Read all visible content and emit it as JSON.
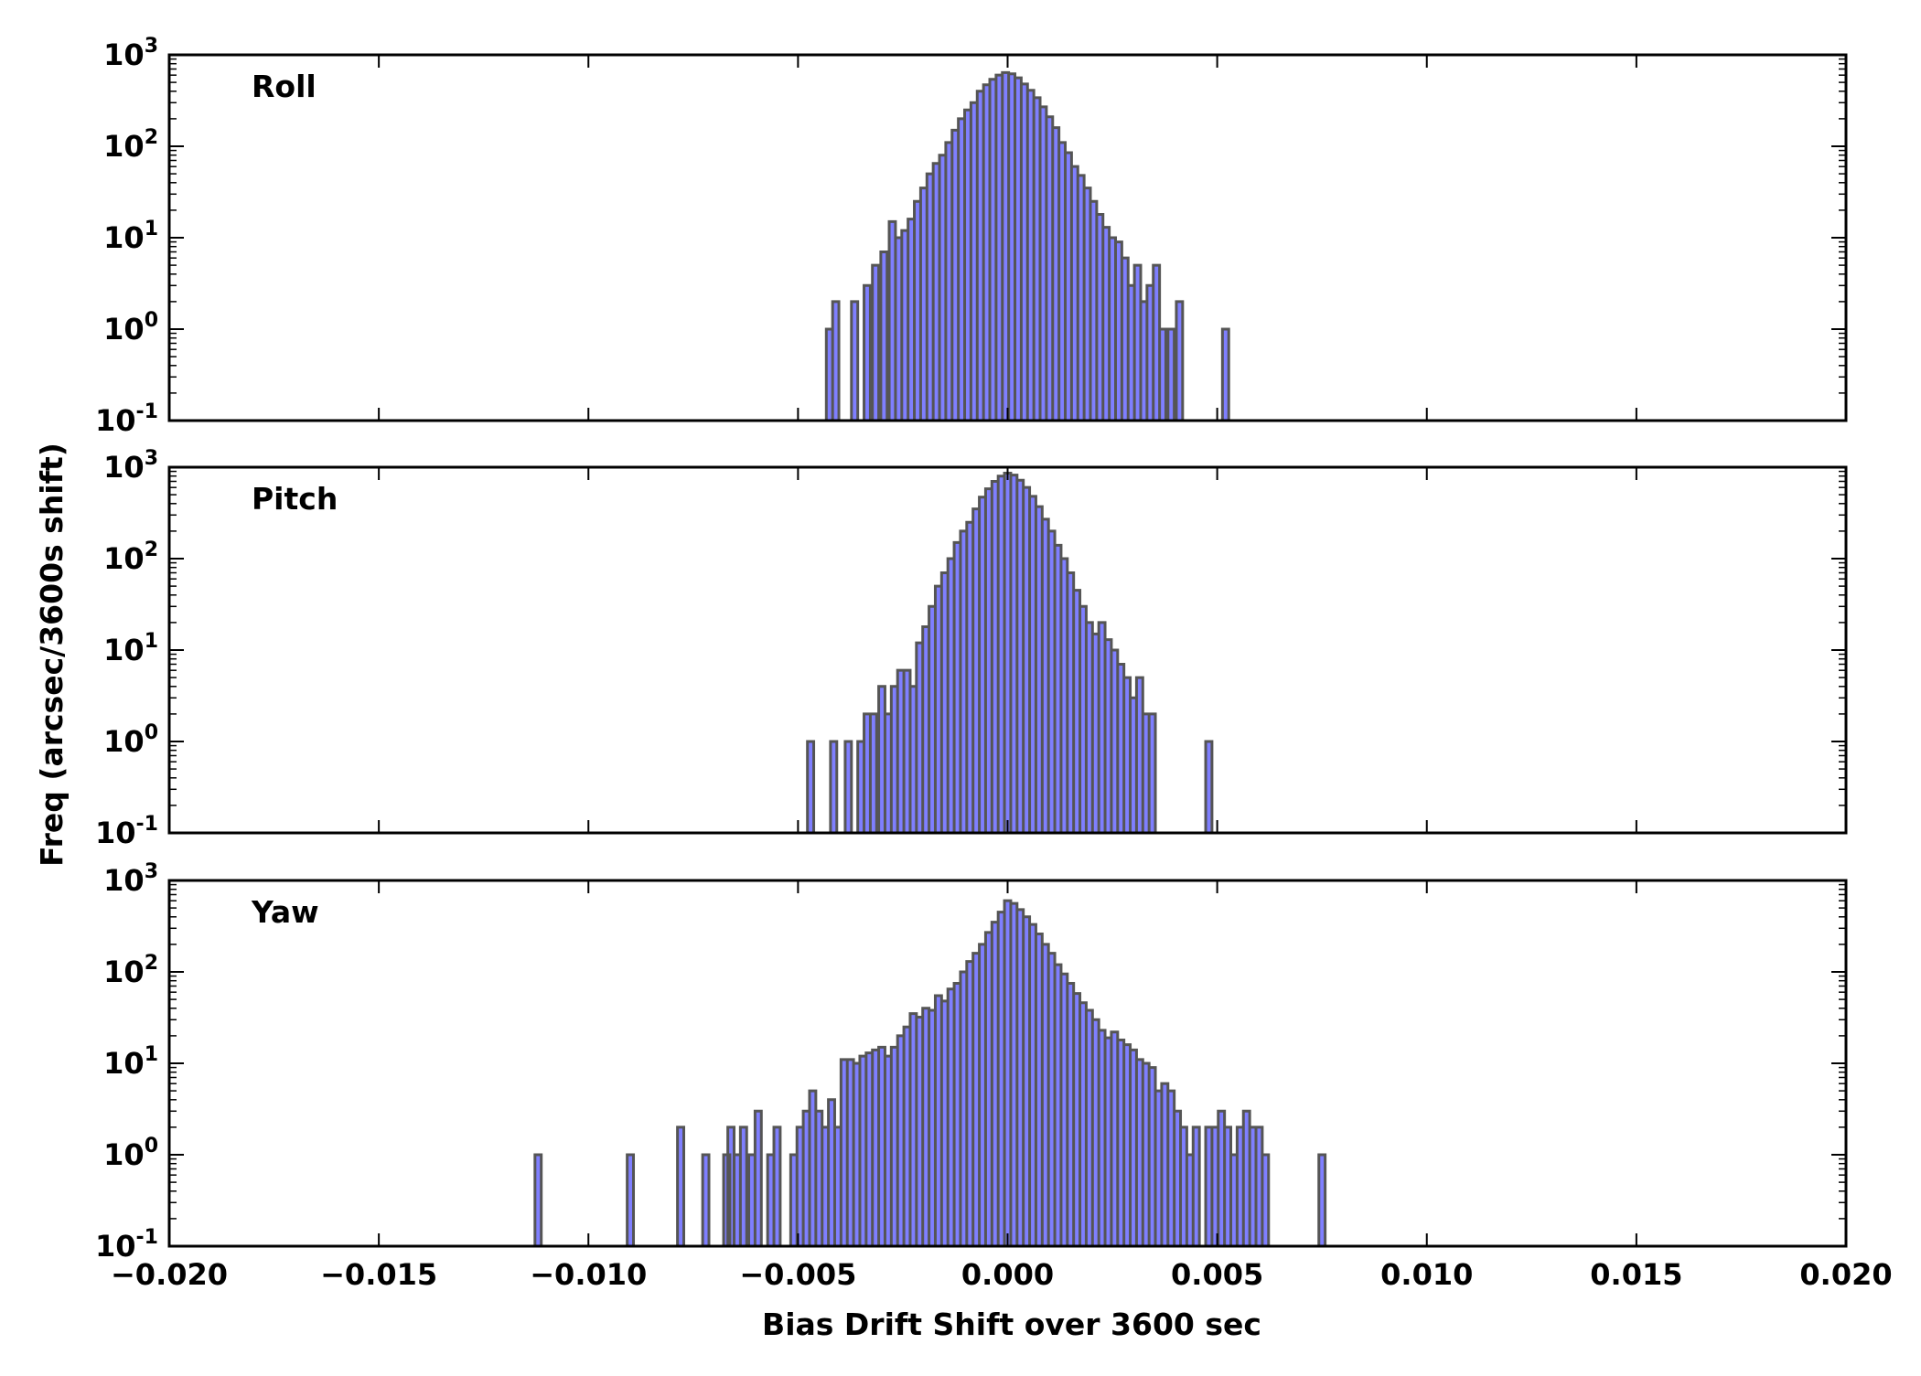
{
  "chart_data": {
    "type": "histogram",
    "shared_x_axis": {
      "label": "Bias Drift Shift over 3600 sec",
      "xlim": [
        -0.02,
        0.02
      ],
      "ticks": [
        -0.02,
        -0.015,
        -0.01,
        -0.005,
        0.0,
        0.005,
        0.01,
        0.015,
        0.02
      ],
      "tick_labels": [
        "−0.020",
        "−0.015",
        "−0.010",
        "−0.005",
        "0.000",
        "0.005",
        "0.010",
        "0.015",
        "0.020"
      ]
    },
    "shared_y_axis": {
      "label": "Freq (arcsec/3600s shift)",
      "scale": "log",
      "ylim": [
        0.1,
        1000
      ],
      "tick_values": [
        0.1,
        1,
        10,
        100,
        1000
      ],
      "tick_bases": [
        "10",
        "10",
        "10",
        "10",
        "10"
      ],
      "tick_exponents": [
        "-1",
        "0",
        "1",
        "2",
        "3"
      ]
    },
    "colors": {
      "fill": "#7f7fff",
      "edge": "#555555"
    },
    "grid": false,
    "panels": [
      {
        "label": "Roll",
        "bins": [
          {
            "x": -0.00425,
            "v": 1
          },
          {
            "x": -0.0041,
            "v": 2
          },
          {
            "x": -0.0038,
            "v": 0.1
          },
          {
            "x": -0.00365,
            "v": 2
          },
          {
            "x": -0.00335,
            "v": 3
          },
          {
            "x": -0.00315,
            "v": 5
          },
          {
            "x": -0.00295,
            "v": 7
          },
          {
            "x": -0.00275,
            "v": 15
          },
          {
            "x": -0.0026,
            "v": 10
          },
          {
            "x": -0.00245,
            "v": 12
          },
          {
            "x": -0.0023,
            "v": 16
          },
          {
            "x": -0.00215,
            "v": 25
          },
          {
            "x": -0.002,
            "v": 35
          },
          {
            "x": -0.00185,
            "v": 50
          },
          {
            "x": -0.0017,
            "v": 65
          },
          {
            "x": -0.00155,
            "v": 80
          },
          {
            "x": -0.0014,
            "v": 110
          },
          {
            "x": -0.00125,
            "v": 150
          },
          {
            "x": -0.0011,
            "v": 200
          },
          {
            "x": -0.00095,
            "v": 250
          },
          {
            "x": -0.0008,
            "v": 300
          },
          {
            "x": -0.00065,
            "v": 400
          },
          {
            "x": -0.0005,
            "v": 470
          },
          {
            "x": -0.00035,
            "v": 540
          },
          {
            "x": -0.0002,
            "v": 600
          },
          {
            "x": -5e-05,
            "v": 640
          },
          {
            "x": 0.0001,
            "v": 620
          },
          {
            "x": 0.00025,
            "v": 560
          },
          {
            "x": 0.0004,
            "v": 480
          },
          {
            "x": 0.00055,
            "v": 410
          },
          {
            "x": 0.0007,
            "v": 340
          },
          {
            "x": 0.00085,
            "v": 270
          },
          {
            "x": 0.001,
            "v": 210
          },
          {
            "x": 0.00115,
            "v": 160
          },
          {
            "x": 0.0013,
            "v": 110
          },
          {
            "x": 0.00145,
            "v": 85
          },
          {
            "x": 0.0016,
            "v": 60
          },
          {
            "x": 0.00175,
            "v": 48
          },
          {
            "x": 0.0019,
            "v": 35
          },
          {
            "x": 0.00205,
            "v": 25
          },
          {
            "x": 0.0022,
            "v": 18
          },
          {
            "x": 0.00235,
            "v": 13
          },
          {
            "x": 0.0025,
            "v": 10
          },
          {
            "x": 0.00265,
            "v": 9
          },
          {
            "x": 0.0028,
            "v": 6
          },
          {
            "x": 0.00295,
            "v": 3
          },
          {
            "x": 0.0031,
            "v": 5
          },
          {
            "x": 0.00325,
            "v": 2
          },
          {
            "x": 0.0034,
            "v": 3
          },
          {
            "x": 0.00355,
            "v": 5
          },
          {
            "x": 0.0037,
            "v": 1
          },
          {
            "x": 0.0039,
            "v": 1
          },
          {
            "x": 0.0041,
            "v": 2
          },
          {
            "x": 0.0052,
            "v": 1
          }
        ]
      },
      {
        "label": "Pitch",
        "bins": [
          {
            "x": -0.0047,
            "v": 1
          },
          {
            "x": -0.00415,
            "v": 1
          },
          {
            "x": -0.0038,
            "v": 1
          },
          {
            "x": -0.0035,
            "v": 1
          },
          {
            "x": -0.00335,
            "v": 2
          },
          {
            "x": -0.0032,
            "v": 2
          },
          {
            "x": -0.003,
            "v": 4
          },
          {
            "x": -0.00285,
            "v": 2
          },
          {
            "x": -0.0027,
            "v": 4
          },
          {
            "x": -0.00255,
            "v": 6
          },
          {
            "x": -0.0024,
            "v": 6
          },
          {
            "x": -0.00225,
            "v": 4
          },
          {
            "x": -0.0021,
            "v": 12
          },
          {
            "x": -0.00195,
            "v": 18
          },
          {
            "x": -0.0018,
            "v": 30
          },
          {
            "x": -0.00165,
            "v": 50
          },
          {
            "x": -0.0015,
            "v": 70
          },
          {
            "x": -0.00135,
            "v": 100
          },
          {
            "x": -0.0012,
            "v": 150
          },
          {
            "x": -0.00105,
            "v": 200
          },
          {
            "x": -0.0009,
            "v": 250
          },
          {
            "x": -0.00075,
            "v": 350
          },
          {
            "x": -0.0006,
            "v": 470
          },
          {
            "x": -0.00045,
            "v": 580
          },
          {
            "x": -0.0003,
            "v": 700
          },
          {
            "x": -0.00015,
            "v": 800
          },
          {
            "x": 0.0,
            "v": 860
          },
          {
            "x": 0.00015,
            "v": 820
          },
          {
            "x": 0.0003,
            "v": 720
          },
          {
            "x": 0.00045,
            "v": 600
          },
          {
            "x": 0.0006,
            "v": 480
          },
          {
            "x": 0.00075,
            "v": 370
          },
          {
            "x": 0.0009,
            "v": 270
          },
          {
            "x": 0.00105,
            "v": 200
          },
          {
            "x": 0.0012,
            "v": 140
          },
          {
            "x": 0.00135,
            "v": 100
          },
          {
            "x": 0.0015,
            "v": 70
          },
          {
            "x": 0.00165,
            "v": 45
          },
          {
            "x": 0.0018,
            "v": 30
          },
          {
            "x": 0.00195,
            "v": 20
          },
          {
            "x": 0.0021,
            "v": 15
          },
          {
            "x": 0.00225,
            "v": 20
          },
          {
            "x": 0.0024,
            "v": 13
          },
          {
            "x": 0.00255,
            "v": 10
          },
          {
            "x": 0.0027,
            "v": 7
          },
          {
            "x": 0.00285,
            "v": 5
          },
          {
            "x": 0.003,
            "v": 3
          },
          {
            "x": 0.00315,
            "v": 5
          },
          {
            "x": 0.0033,
            "v": 2
          },
          {
            "x": 0.00345,
            "v": 2
          },
          {
            "x": 0.0048,
            "v": 1
          }
        ]
      },
      {
        "label": "Yaw",
        "bins": [
          {
            "x": -0.0112,
            "v": 1
          },
          {
            "x": -0.009,
            "v": 1
          },
          {
            "x": -0.0078,
            "v": 2
          },
          {
            "x": -0.0072,
            "v": 1
          },
          {
            "x": -0.0067,
            "v": 1
          },
          {
            "x": -0.0066,
            "v": 2
          },
          {
            "x": -0.00645,
            "v": 1
          },
          {
            "x": -0.0063,
            "v": 2
          },
          {
            "x": -0.0061,
            "v": 1
          },
          {
            "x": -0.00595,
            "v": 3
          },
          {
            "x": -0.00565,
            "v": 1
          },
          {
            "x": -0.0055,
            "v": 2
          },
          {
            "x": -0.0051,
            "v": 1
          },
          {
            "x": -0.00495,
            "v": 2
          },
          {
            "x": -0.0048,
            "v": 3
          },
          {
            "x": -0.00465,
            "v": 5
          },
          {
            "x": -0.0045,
            "v": 3
          },
          {
            "x": -0.00435,
            "v": 2
          },
          {
            "x": -0.0042,
            "v": 4
          },
          {
            "x": -0.00405,
            "v": 2
          },
          {
            "x": -0.0039,
            "v": 11
          },
          {
            "x": -0.00375,
            "v": 11
          },
          {
            "x": -0.0036,
            "v": 10
          },
          {
            "x": -0.00345,
            "v": 12
          },
          {
            "x": -0.0033,
            "v": 13
          },
          {
            "x": -0.00315,
            "v": 14
          },
          {
            "x": -0.003,
            "v": 15
          },
          {
            "x": -0.00285,
            "v": 12
          },
          {
            "x": -0.0027,
            "v": 15
          },
          {
            "x": -0.00255,
            "v": 20
          },
          {
            "x": -0.0024,
            "v": 25
          },
          {
            "x": -0.00225,
            "v": 35
          },
          {
            "x": -0.0021,
            "v": 32
          },
          {
            "x": -0.00195,
            "v": 40
          },
          {
            "x": -0.0018,
            "v": 38
          },
          {
            "x": -0.00165,
            "v": 55
          },
          {
            "x": -0.0015,
            "v": 48
          },
          {
            "x": -0.00135,
            "v": 65
          },
          {
            "x": -0.0012,
            "v": 75
          },
          {
            "x": -0.00105,
            "v": 100
          },
          {
            "x": -0.0009,
            "v": 130
          },
          {
            "x": -0.00075,
            "v": 160
          },
          {
            "x": -0.0006,
            "v": 200
          },
          {
            "x": -0.00045,
            "v": 270
          },
          {
            "x": -0.0003,
            "v": 350
          },
          {
            "x": -0.00015,
            "v": 450
          },
          {
            "x": 0.0,
            "v": 600
          },
          {
            "x": 0.00015,
            "v": 560
          },
          {
            "x": 0.0003,
            "v": 480
          },
          {
            "x": 0.00045,
            "v": 400
          },
          {
            "x": 0.0006,
            "v": 330
          },
          {
            "x": 0.00075,
            "v": 260
          },
          {
            "x": 0.0009,
            "v": 200
          },
          {
            "x": 0.00105,
            "v": 160
          },
          {
            "x": 0.0012,
            "v": 120
          },
          {
            "x": 0.00135,
            "v": 95
          },
          {
            "x": 0.0015,
            "v": 75
          },
          {
            "x": 0.00165,
            "v": 58
          },
          {
            "x": 0.0018,
            "v": 46
          },
          {
            "x": 0.00195,
            "v": 38
          },
          {
            "x": 0.0021,
            "v": 30
          },
          {
            "x": 0.00225,
            "v": 23
          },
          {
            "x": 0.0024,
            "v": 19
          },
          {
            "x": 0.00255,
            "v": 22
          },
          {
            "x": 0.0027,
            "v": 18
          },
          {
            "x": 0.00285,
            "v": 16
          },
          {
            "x": 0.003,
            "v": 14
          },
          {
            "x": 0.00315,
            "v": 11
          },
          {
            "x": 0.0033,
            "v": 10
          },
          {
            "x": 0.00345,
            "v": 9
          },
          {
            "x": 0.0036,
            "v": 5
          },
          {
            "x": 0.00375,
            "v": 6
          },
          {
            "x": 0.0039,
            "v": 5
          },
          {
            "x": 0.00405,
            "v": 3
          },
          {
            "x": 0.0042,
            "v": 2
          },
          {
            "x": 0.00435,
            "v": 1
          },
          {
            "x": 0.0045,
            "v": 2
          },
          {
            "x": 0.0048,
            "v": 2
          },
          {
            "x": 0.00495,
            "v": 2
          },
          {
            "x": 0.0051,
            "v": 3
          },
          {
            "x": 0.00525,
            "v": 2
          },
          {
            "x": 0.0054,
            "v": 1
          },
          {
            "x": 0.00555,
            "v": 2
          },
          {
            "x": 0.0057,
            "v": 3
          },
          {
            "x": 0.00585,
            "v": 2
          },
          {
            "x": 0.006,
            "v": 2
          },
          {
            "x": 0.00615,
            "v": 1
          },
          {
            "x": 0.0075,
            "v": 1
          }
        ]
      }
    ]
  }
}
